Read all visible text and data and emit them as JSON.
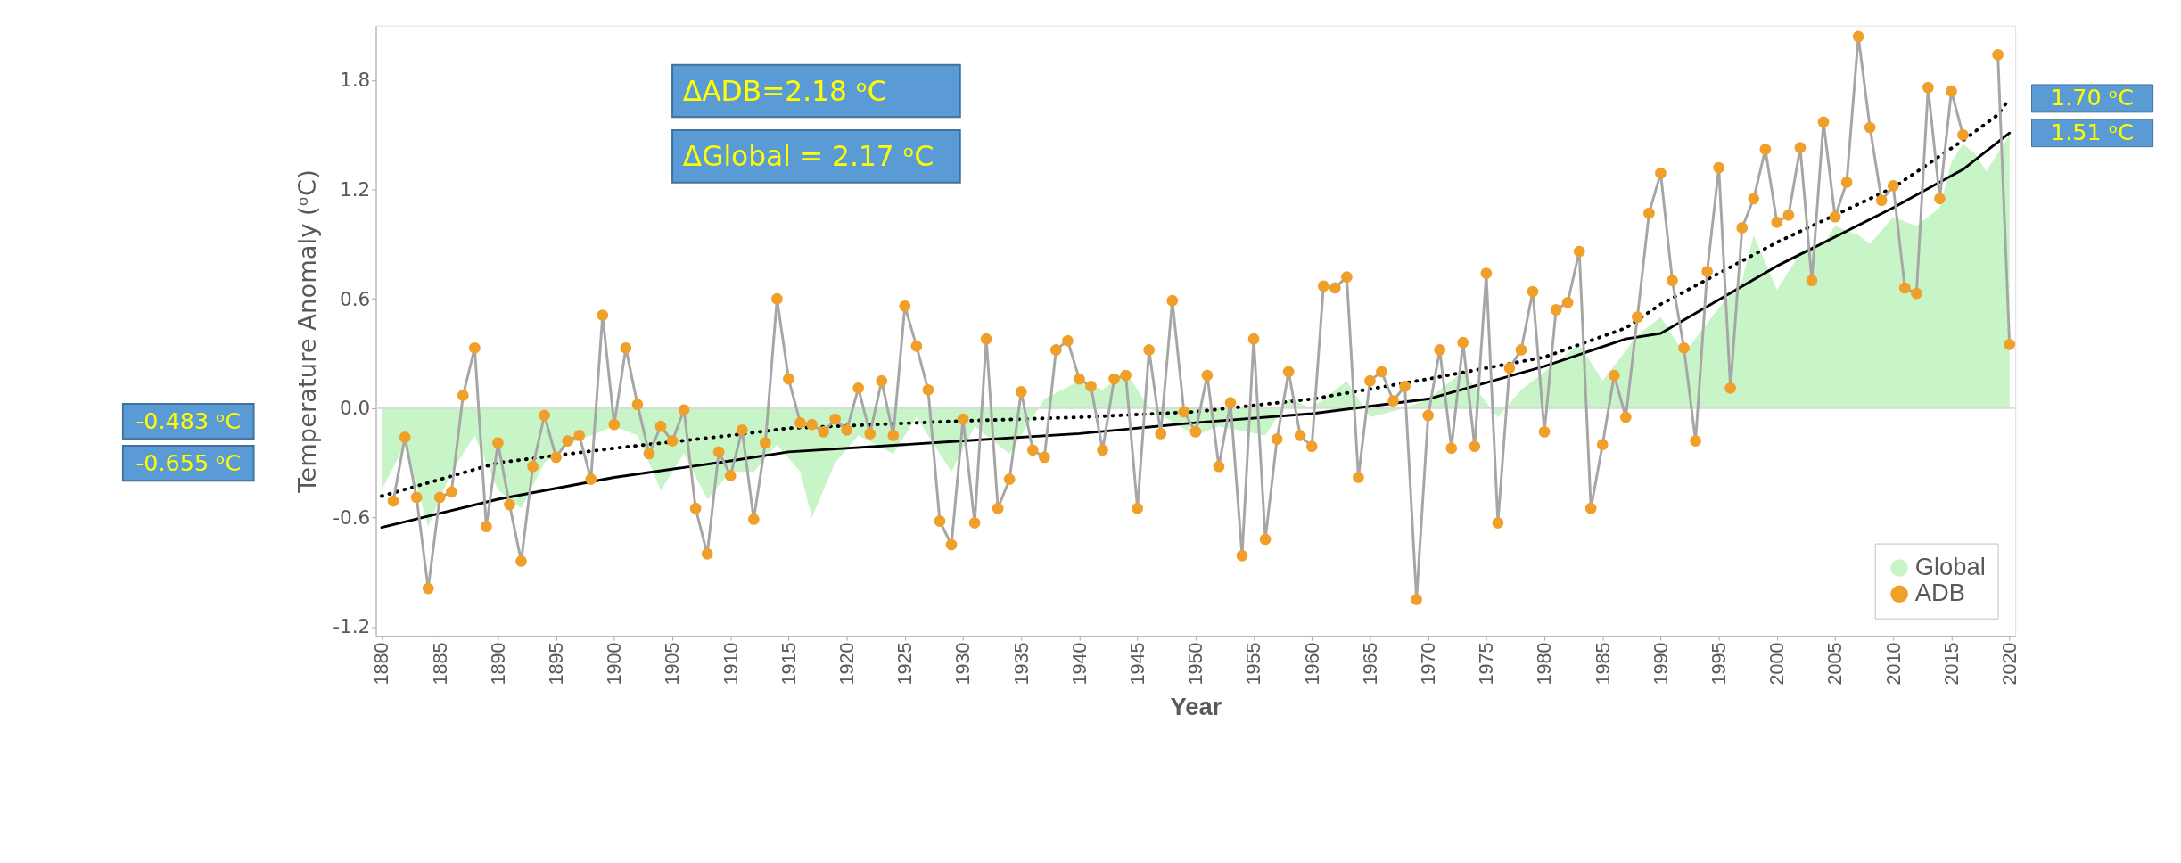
{
  "chart_data": {
    "type": "line",
    "xlabel": "Year",
    "ylabel": "Temperature Anomaly (ᵒC)",
    "xlim": [
      1879.5,
      2020.5
    ],
    "ylim": [
      -1.25,
      2.1
    ],
    "xticks": [
      1880,
      1885,
      1890,
      1895,
      1900,
      1905,
      1910,
      1915,
      1920,
      1925,
      1930,
      1935,
      1940,
      1945,
      1950,
      1955,
      1960,
      1965,
      1970,
      1975,
      1980,
      1985,
      1990,
      1995,
      2000,
      2005,
      2010,
      2015,
      2020
    ],
    "yticks": [
      -1.2,
      -0.6,
      {
        "value": 0,
        "label": "0.0"
      },
      0.6,
      1.2,
      1.8
    ],
    "grid": false,
    "legend": "bottom right",
    "series": [
      {
        "name": "Global",
        "type": "area",
        "color": "#c8f5c8",
        "marker": "none",
        "x": [
          1880,
          1882,
          1884,
          1886,
          1888,
          1890,
          1892,
          1894,
          1896,
          1898,
          1900,
          1902,
          1904,
          1906,
          1908,
          1910,
          1912,
          1914,
          1916,
          1917,
          1919,
          1921,
          1924,
          1926,
          1929,
          1931,
          1934,
          1937,
          1940,
          1942,
          1944,
          1946,
          1950,
          1952,
          1956,
          1958,
          1960,
          1963,
          1965,
          1968,
          1970,
          1973,
          1976,
          1978,
          1980,
          1983,
          1985,
          1988,
          1990,
          1992,
          1995,
          1997,
          1998,
          2000,
          2002,
          2004,
          2005,
          2007,
          2008,
          2010,
          2012,
          2014,
          2015,
          2016,
          2017,
          2018,
          2019,
          2020
        ],
        "values": [
          -0.45,
          -0.2,
          -0.65,
          -0.35,
          -0.15,
          -0.45,
          -0.55,
          -0.3,
          -0.2,
          -0.15,
          -0.1,
          -0.15,
          -0.45,
          -0.25,
          -0.5,
          -0.35,
          -0.35,
          -0.2,
          -0.35,
          -0.6,
          -0.3,
          -0.15,
          -0.25,
          -0.05,
          -0.35,
          -0.1,
          -0.25,
          0.05,
          0.15,
          0.1,
          0.2,
          0.0,
          -0.15,
          -0.1,
          -0.15,
          0.05,
          0.0,
          0.15,
          -0.05,
          0.0,
          0.05,
          0.2,
          -0.05,
          0.1,
          0.2,
          0.35,
          0.15,
          0.4,
          0.5,
          0.3,
          0.55,
          0.7,
          0.95,
          0.65,
          0.85,
          0.9,
          1.0,
          0.95,
          0.9,
          1.05,
          1.0,
          1.1,
          1.35,
          1.45,
          1.4,
          1.3,
          1.4,
          1.5
        ]
      },
      {
        "type": "line",
        "color": "#000000",
        "line_style": "solid",
        "marker": "none",
        "x": [
          1880,
          1890,
          1900,
          1910,
          1915,
          1930,
          1940,
          1950,
          1960,
          1970,
          1980,
          1987,
          1990,
          2000,
          2010,
          2016,
          2020
        ],
        "values": [
          -0.655,
          -0.5,
          -0.38,
          -0.29,
          -0.24,
          -0.18,
          -0.14,
          -0.08,
          -0.03,
          0.05,
          0.23,
          0.38,
          0.41,
          0.78,
          1.1,
          1.31,
          1.51
        ]
      },
      {
        "type": "line",
        "color": "#000000",
        "line_style": "dotted",
        "marker": "none",
        "x": [
          1880,
          1890,
          1900,
          1910,
          1915,
          1930,
          1940,
          1950,
          1960,
          1970,
          1980,
          1987,
          1990,
          2000,
          2010,
          2016,
          2019,
          2020
        ],
        "values": [
          -0.483,
          -0.3,
          -0.22,
          -0.15,
          -0.11,
          -0.07,
          -0.05,
          -0.02,
          0.05,
          0.16,
          0.28,
          0.44,
          0.57,
          0.91,
          1.21,
          1.47,
          1.61,
          1.7
        ]
      },
      {
        "name": "ADB",
        "color": "#f0a028",
        "marker": "circle",
        "line_style": "solid",
        "x": [
          1881,
          1882,
          1883,
          1884,
          1885,
          1886,
          1887,
          1888,
          1889,
          1890,
          1891,
          1892,
          1893,
          1894,
          1895,
          1896,
          1897,
          1898,
          1899,
          1900,
          1901,
          1902,
          1903,
          1904,
          1905,
          1906,
          1907,
          1908,
          1909,
          1910,
          1911,
          1912,
          1913,
          1914,
          1915,
          1916,
          1917,
          1918,
          1919,
          1920,
          1921,
          1922,
          1923,
          1924,
          1925,
          1926,
          1927,
          1928,
          1929,
          1930,
          1931,
          1932,
          1933,
          1934,
          1935,
          1936,
          1937,
          1938,
          1939,
          1940,
          1941,
          1942,
          1943,
          1944,
          1945,
          1946,
          1947,
          1948,
          1949,
          1950,
          1951,
          1952,
          1953,
          1954,
          1955,
          1956,
          1957,
          1958,
          1959,
          1960,
          1961,
          1962,
          1963,
          1964,
          1965,
          1966,
          1967,
          1968,
          1969,
          1970,
          1971,
          1972,
          1973,
          1974,
          1975,
          1976,
          1977,
          1978,
          1979,
          1980,
          1981,
          1982,
          1983,
          1984,
          1985,
          1986,
          1987,
          1988,
          1989,
          1990,
          1991,
          1992,
          1993,
          1994,
          1995,
          1996,
          1997,
          1998,
          1999,
          2000,
          2001,
          2002,
          2003,
          2004,
          2005,
          2006,
          2007,
          2008,
          2009,
          2010,
          2011,
          2012,
          2013,
          2014,
          2015,
          2016,
          2017,
          2018,
          2019,
          2020
        ],
        "values": [
          -0.51,
          -0.16,
          -0.49,
          -0.99,
          -0.49,
          -0.46,
          0.07,
          0.33,
          -0.65,
          -0.19,
          -0.53,
          -0.84,
          -0.32,
          -0.04,
          -0.27,
          -0.18,
          -0.15,
          -0.39,
          0.51,
          -0.09,
          0.33,
          0.02,
          -0.25,
          -0.1,
          -0.18,
          -0.01,
          -0.55,
          -0.8,
          -0.24,
          -0.37,
          -0.12,
          -0.61,
          -0.19,
          0.6,
          0.16,
          -0.08,
          -0.09,
          -0.13,
          -0.06,
          -0.12,
          0.11,
          -0.14,
          0.15,
          -0.15,
          0.56,
          0.34,
          0.1,
          -0.62,
          -0.75,
          -0.06,
          -0.63,
          0.38,
          -0.55,
          -0.39,
          0.09,
          -0.23,
          -0.27,
          0.32,
          0.37,
          0.16,
          0.12,
          -0.23,
          0.16,
          0.18,
          -0.55,
          0.32,
          -0.14,
          0.59,
          -0.02,
          -0.13,
          0.18,
          -0.32,
          0.03,
          -0.81,
          0.38,
          -0.72,
          -0.17,
          0.2,
          -0.15,
          -0.21,
          0.67,
          0.66,
          0.72,
          -0.38,
          0.15,
          0.2,
          0.04,
          0.12,
          -1.05,
          -0.04,
          0.32,
          -0.22,
          0.36,
          -0.21,
          0.74,
          -0.63,
          0.22,
          0.32,
          0.64,
          -0.13,
          0.54,
          0.58,
          0.86,
          -0.55,
          -0.2,
          0.18,
          -0.05,
          0.5,
          1.07,
          1.29,
          0.7,
          0.33,
          -0.18,
          0.75,
          1.32,
          0.11,
          0.99,
          1.15,
          1.42,
          1.02,
          1.06,
          1.43,
          0.7,
          1.57,
          1.05,
          1.24,
          2.04,
          1.54,
          1.14,
          1.22,
          0.66,
          0.63,
          1.76,
          1.15,
          1.74,
          1.5,
          null,
          null,
          1.94,
          0.35
        ]
      }
    ],
    "ref_lines": [
      {
        "axis": "y",
        "value": 0,
        "color": "#d9d9d9"
      }
    ],
    "annotations": [
      "ΔADB=2.18 ᵒC",
      "ΔGlobal = 2.17 ᵒC",
      "-0.483 ᵒC",
      "-0.655 ᵒC",
      {
        "text": "1.70 ᵒC",
        "x": 2020,
        "y": 1.7
      },
      {
        "text": "1.51 ᵒC",
        "x": 2020,
        "y": 1.51
      }
    ]
  }
}
